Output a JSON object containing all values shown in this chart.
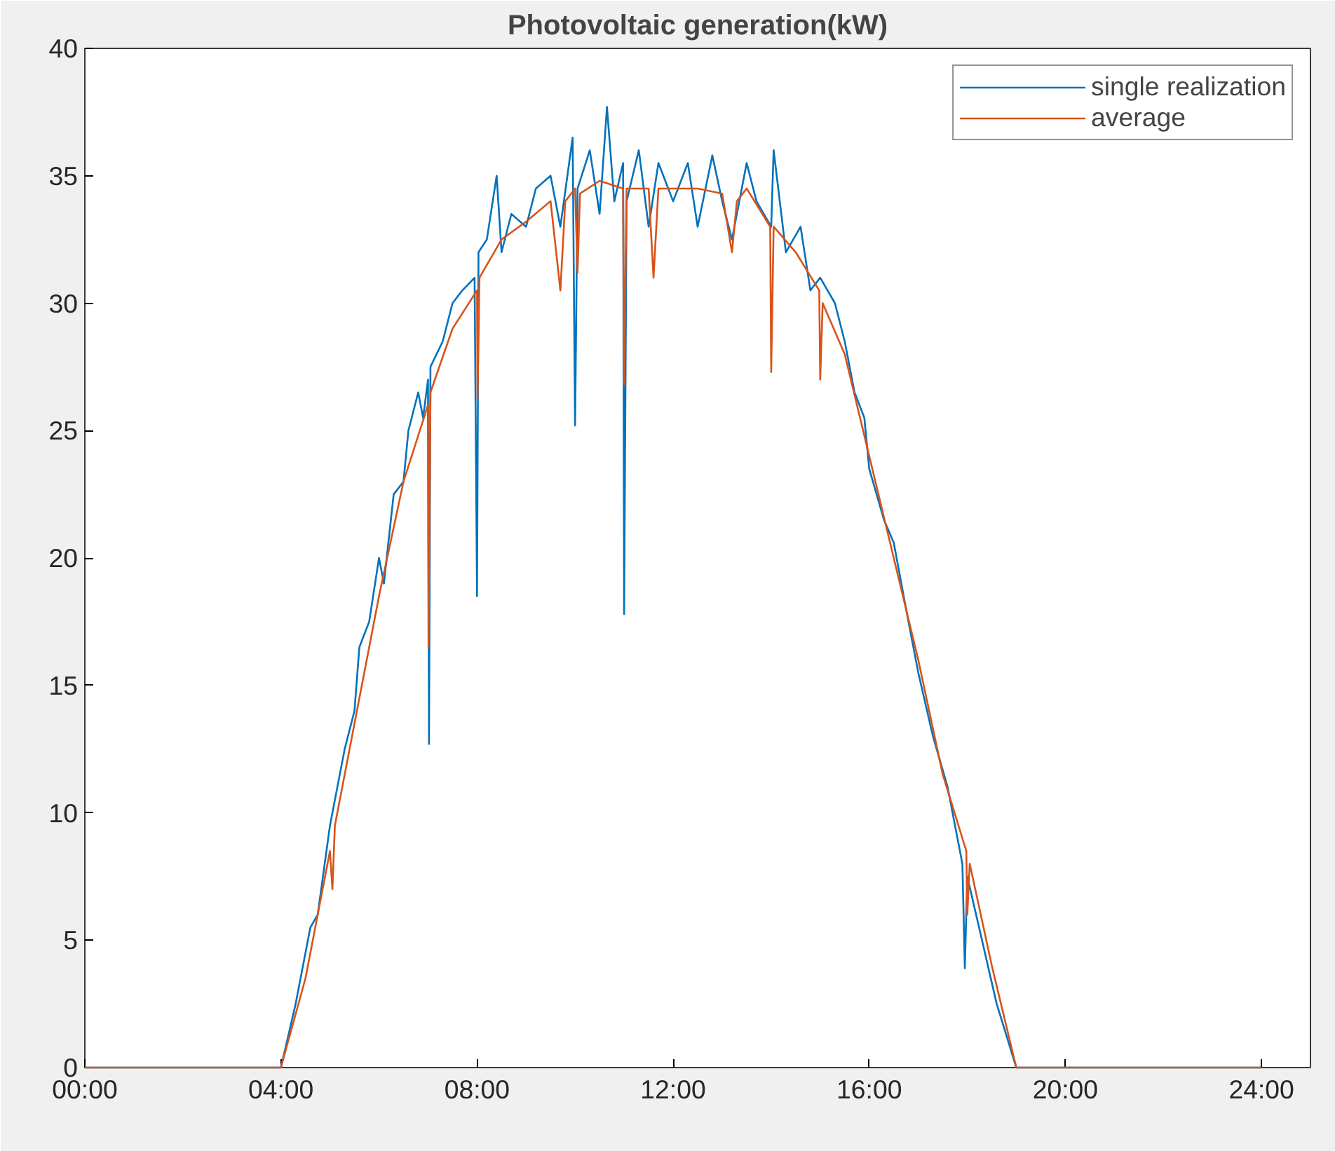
{
  "chart_data": {
    "type": "line",
    "title": "Photovoltaic generation(kW)",
    "x": [
      0,
      4.0,
      4.3,
      4.6,
      4.75,
      5.0,
      5.3,
      5.5,
      5.6,
      5.8,
      6.0,
      6.1,
      6.3,
      6.5,
      6.6,
      6.8,
      6.9,
      7.0,
      7.02,
      7.05,
      7.3,
      7.5,
      7.7,
      7.95,
      8.0,
      8.03,
      8.2,
      8.4,
      8.5,
      8.7,
      9.0,
      9.2,
      9.5,
      9.7,
      9.95,
      10.0,
      10.05,
      10.3,
      10.5,
      10.65,
      10.8,
      10.98,
      11.0,
      11.05,
      11.3,
      11.5,
      11.7,
      12.0,
      12.3,
      12.5,
      12.8,
      13.0,
      13.2,
      13.5,
      13.7,
      14.0,
      14.05,
      14.3,
      14.6,
      14.8,
      15.0,
      15.3,
      15.5,
      15.7,
      15.9,
      16.0,
      16.3,
      16.5,
      16.8,
      17.0,
      17.3,
      17.6,
      17.9,
      17.95,
      18.0,
      18.3,
      18.6,
      19.0,
      24.0
    ],
    "series": [
      {
        "name": "single realization",
        "color": "#0072bd",
        "values": [
          0,
          0,
          2.5,
          5.5,
          6,
          9.5,
          12.5,
          14,
          16.5,
          17.5,
          20,
          19,
          22.5,
          23,
          25,
          26.5,
          25.5,
          27,
          12.7,
          27.5,
          28.5,
          30,
          30.5,
          31,
          18.5,
          32,
          32.5,
          35,
          32,
          33.5,
          33,
          34.5,
          35,
          33,
          36.5,
          25.2,
          34.5,
          36,
          33.5,
          37.7,
          34,
          35.5,
          17.8,
          34,
          36,
          33,
          35.5,
          34,
          35.5,
          33,
          35.8,
          34,
          32.5,
          35.5,
          34,
          33,
          36,
          32,
          33,
          30.5,
          31,
          30,
          28.5,
          26.5,
          25.5,
          23.5,
          21.5,
          20.6,
          17.5,
          15.5,
          13,
          11,
          8,
          3.9,
          7.5,
          5,
          2.5,
          0,
          0
        ]
      },
      {
        "name": "average",
        "color": "#d95319",
        "x": [
          0,
          4.0,
          4.5,
          5.0,
          5.05,
          5.1,
          5.5,
          6.0,
          6.5,
          7.0,
          7.01,
          7.05,
          7.5,
          8.0,
          8.01,
          8.05,
          8.5,
          9.0,
          9.5,
          9.7,
          9.8,
          10.0,
          10.05,
          10.1,
          10.5,
          10.98,
          11.0,
          11.05,
          11.5,
          11.6,
          11.7,
          12.5,
          13.0,
          13.2,
          13.3,
          13.5,
          13.98,
          14.0,
          14.05,
          14.5,
          14.98,
          15.0,
          15.05,
          15.5,
          16.0,
          16.5,
          17.0,
          17.5,
          17.98,
          18.0,
          18.05,
          18.5,
          19.0,
          24.0
        ],
        "values": [
          0,
          0,
          3.5,
          8.5,
          7,
          9.5,
          13.5,
          18.5,
          23,
          26,
          16.5,
          26.5,
          29,
          30.5,
          26.2,
          31,
          32.5,
          33.2,
          34,
          30.5,
          34,
          34.5,
          31.2,
          34.3,
          34.8,
          34.5,
          26.8,
          34.5,
          34.5,
          31,
          34.5,
          34.5,
          34.3,
          32,
          34,
          34.5,
          33,
          27.3,
          33,
          32,
          30.5,
          27,
          30,
          28,
          24,
          20,
          16,
          11.5,
          8.5,
          6,
          8,
          4,
          0,
          0
        ]
      }
    ],
    "xlim": [
      0,
      25
    ],
    "ylim": [
      0,
      40
    ],
    "xticks": [
      {
        "value": 0,
        "label": "00:00"
      },
      {
        "value": 4,
        "label": "04:00"
      },
      {
        "value": 8,
        "label": "08:00"
      },
      {
        "value": 12,
        "label": "12:00"
      },
      {
        "value": 16,
        "label": "16:00"
      },
      {
        "value": 20,
        "label": "20:00"
      },
      {
        "value": 24,
        "label": "24:00"
      }
    ],
    "yticks": [
      0,
      5,
      10,
      15,
      20,
      25,
      30,
      35,
      40
    ],
    "grid": false,
    "legend": "top right",
    "marker": "none",
    "line_style": "solid"
  }
}
